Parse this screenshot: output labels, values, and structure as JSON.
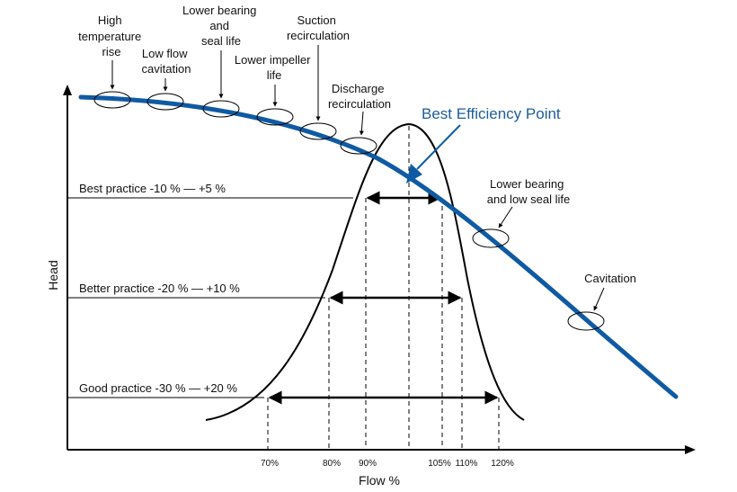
{
  "axes": {
    "y_label": "Head",
    "x_label": "Flow %"
  },
  "ticks": [
    "70%",
    "80%",
    "90%",
    "105%",
    "110%",
    "120%"
  ],
  "bep_label": "Best Efficiency Point",
  "practices": [
    "Best practice -10 % — +5 %",
    "Better practice -20 % — +10 %",
    "Good practice -30 % — +20 %"
  ],
  "callouts": {
    "high_temp": [
      "High",
      "temperature",
      "rise"
    ],
    "low_flow": [
      "Low flow",
      "cavitation"
    ],
    "lower_bearing_seal": [
      "Lower bearing",
      "and",
      "seal life"
    ],
    "lower_impeller": [
      "Lower impeller",
      "life"
    ],
    "suction_recirc": [
      "Suction",
      "recirculation"
    ],
    "discharge_recirc": [
      "Discharge",
      "recirculation"
    ],
    "lower_bearing_low_seal": [
      "Lower bearing",
      "and low seal life"
    ],
    "cavitation": [
      "Cavitation"
    ]
  },
  "colors": {
    "curve": "#0f5aa3",
    "bep_text": "#1d5c9a",
    "ink": "#000000"
  }
}
